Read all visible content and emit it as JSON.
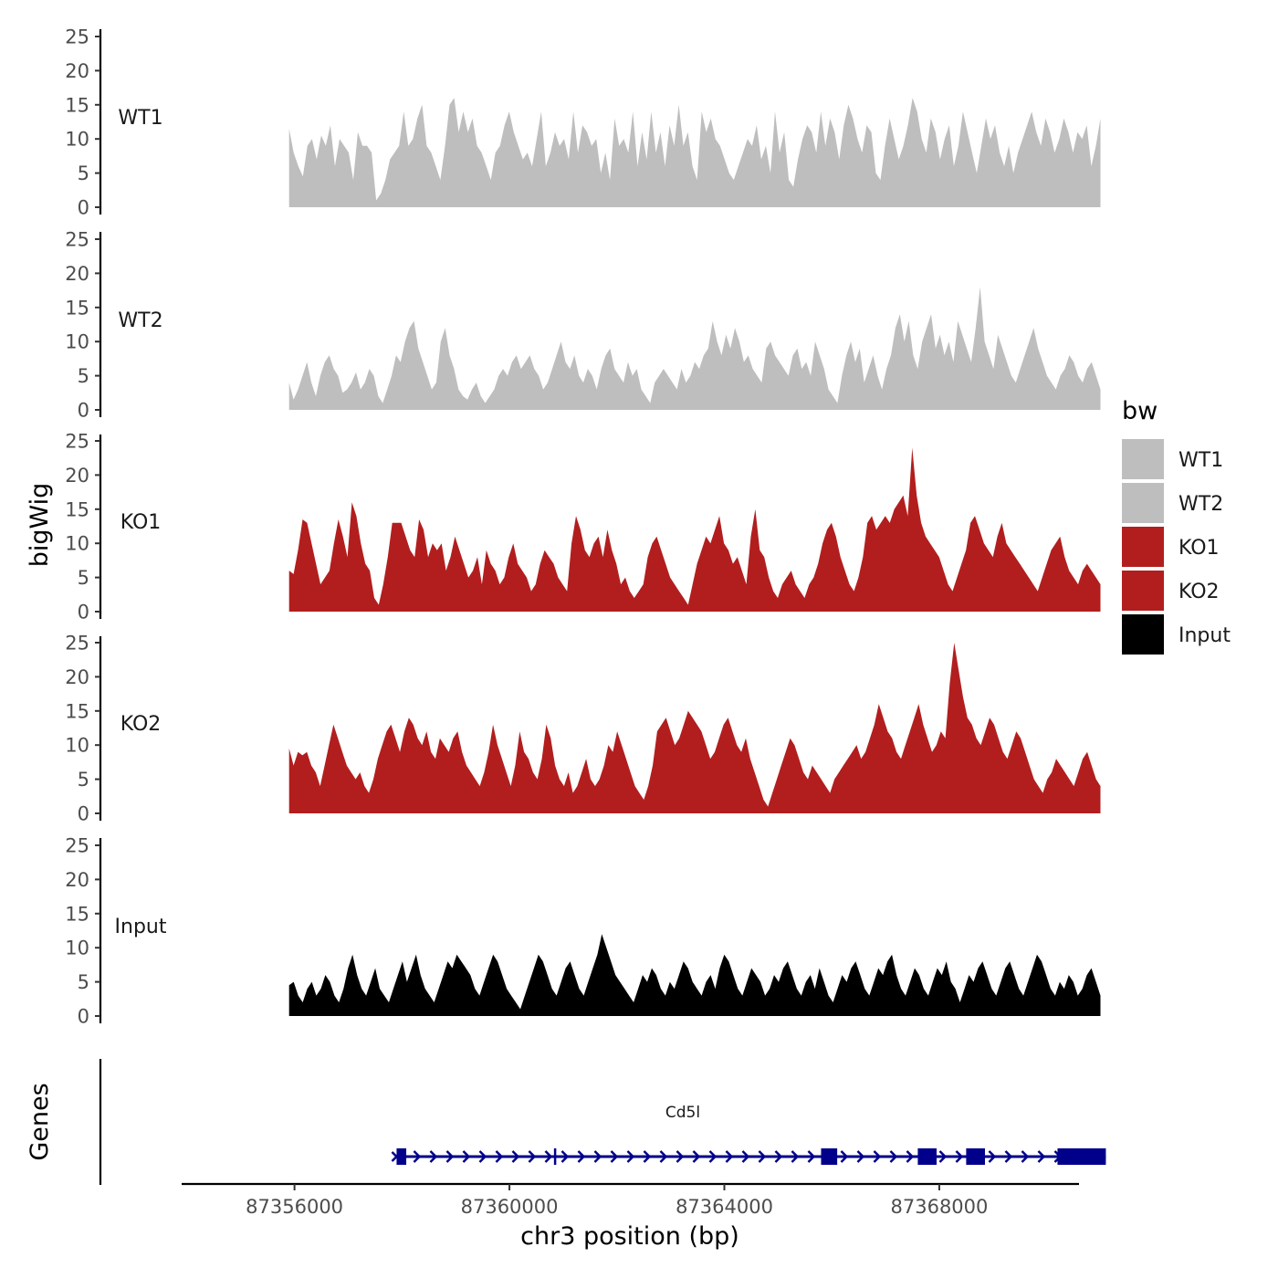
{
  "chart_data": {
    "type": "area",
    "xlabel": "chr3 position (bp)",
    "ylabel": "bigWig",
    "genes_label": "Genes",
    "xlim": [
      87353900,
      87370600
    ],
    "x_ticks": [
      87356000,
      87360000,
      87364000,
      87368000
    ],
    "x_tick_labels": [
      "87356000",
      "87360000",
      "87364000",
      "87368000"
    ],
    "data_range": [
      87355900,
      87371000
    ],
    "ylim": [
      0,
      25
    ],
    "y_ticks": [
      0,
      5,
      10,
      15,
      20,
      25
    ],
    "y_tick_labels": [
      "0",
      "5",
      "10",
      "15",
      "20",
      "25"
    ],
    "legend": {
      "title": "bw",
      "items": [
        {
          "label": "WT1",
          "color": "#bebebe"
        },
        {
          "label": "WT2",
          "color": "#bebebe"
        },
        {
          "label": "KO1",
          "color": "#b21e1e"
        },
        {
          "label": "KO2",
          "color": "#b21e1e"
        },
        {
          "label": "Input",
          "color": "#000000"
        }
      ]
    },
    "tracks": [
      {
        "name": "WT1",
        "color": "#bebebe",
        "values": [
          11.5,
          8,
          6,
          4.5,
          9,
          10,
          7,
          10.5,
          9,
          12,
          6,
          10,
          9,
          8,
          4,
          11,
          9,
          9,
          8,
          1,
          2,
          4,
          7,
          8,
          9,
          14,
          9,
          10,
          13,
          15,
          9,
          8,
          6,
          4,
          9,
          15,
          16,
          11,
          14,
          11,
          13,
          9,
          8,
          6,
          4,
          8,
          9,
          12,
          14,
          11,
          9,
          7,
          8,
          6,
          10,
          14,
          6,
          8,
          11,
          9,
          10,
          7,
          14,
          8,
          12,
          11,
          9,
          10,
          5,
          8,
          4,
          13,
          9,
          10,
          8,
          14,
          6,
          11,
          7,
          14,
          8,
          11,
          6,
          12,
          9,
          15,
          9,
          11,
          6,
          4,
          14,
          11,
          13,
          10,
          9,
          7,
          5,
          4,
          6,
          8,
          10,
          9,
          12,
          7,
          9,
          5,
          14,
          8,
          11,
          4,
          3,
          7,
          10,
          12,
          11,
          8,
          14,
          9,
          13,
          11,
          7,
          12,
          15,
          13,
          10,
          8,
          12,
          11,
          5,
          4,
          9,
          13,
          10,
          7,
          9,
          12,
          16,
          14,
          10,
          8,
          13,
          11,
          7,
          10,
          12,
          6,
          9,
          14,
          11,
          8,
          5,
          9,
          13,
          10,
          12,
          8,
          6,
          9,
          5,
          8,
          10,
          12,
          14,
          11,
          9,
          13,
          11,
          8,
          10,
          13,
          11,
          8,
          11,
          10,
          12,
          6,
          9,
          13
        ]
      },
      {
        "name": "WT2",
        "color": "#bebebe",
        "values": [
          4,
          1.5,
          3,
          5,
          7,
          4,
          2,
          5,
          7,
          8,
          6,
          5,
          2.5,
          3,
          4,
          5.5,
          3,
          4,
          6,
          5,
          2,
          1,
          3,
          5,
          8,
          7,
          10,
          12,
          13,
          9,
          7,
          5,
          3,
          4,
          10,
          12,
          8,
          6,
          3,
          2,
          1.5,
          3,
          4,
          2,
          1,
          2,
          3,
          5,
          6,
          5,
          7,
          8,
          6,
          7,
          8,
          6,
          5,
          3,
          4,
          6,
          8,
          10,
          7,
          6,
          8,
          5,
          4,
          6,
          5,
          3,
          6,
          8,
          9,
          6,
          5,
          4,
          7,
          5,
          6,
          3,
          2,
          1,
          4,
          5,
          6,
          5,
          4,
          3,
          6,
          4,
          5,
          7,
          6,
          8,
          9,
          13,
          10,
          8,
          11,
          9,
          12,
          10,
          7,
          8,
          6,
          5,
          4,
          9,
          10,
          8,
          7,
          6,
          5,
          8,
          9,
          6,
          7,
          5,
          10,
          8,
          6,
          3,
          2,
          1,
          5,
          8,
          10,
          7,
          9,
          4,
          6,
          8,
          5,
          3,
          6,
          8,
          12,
          14,
          10,
          13,
          8,
          6,
          10,
          12,
          14,
          9,
          11,
          8,
          10,
          7,
          13,
          11,
          9,
          7,
          12,
          18,
          10,
          8,
          6,
          11,
          9,
          7,
          5,
          4,
          6,
          8,
          10,
          12,
          9,
          7,
          5,
          4,
          3,
          5,
          6,
          8,
          7,
          5,
          4,
          6,
          7,
          5,
          3
        ]
      },
      {
        "name": "KO1",
        "color": "#b21e1e",
        "values": [
          6,
          5.5,
          9,
          13.5,
          13,
          10,
          7,
          4,
          5,
          6,
          10,
          13.5,
          11,
          8,
          16,
          14,
          10,
          7,
          6,
          2,
          1,
          4,
          8,
          13,
          13,
          13,
          11,
          9,
          8,
          13.5,
          12,
          8,
          10,
          9,
          10,
          6,
          8,
          11,
          9,
          7,
          5,
          6,
          8,
          4,
          9,
          7,
          6,
          4,
          5,
          8,
          10,
          7,
          6,
          5,
          3,
          4,
          7,
          9,
          8,
          7,
          5,
          4,
          3,
          10,
          14,
          12,
          9,
          8,
          10,
          11,
          8,
          12,
          9,
          7,
          4,
          5,
          3,
          2,
          3,
          4,
          8,
          10,
          11,
          9,
          7,
          5,
          4,
          3,
          2,
          1,
          4,
          7,
          9,
          11,
          10,
          12,
          14,
          10,
          9,
          7,
          8,
          6,
          4,
          11,
          15,
          9,
          8,
          5,
          3,
          2,
          4,
          5,
          6,
          4,
          3,
          2,
          4,
          5,
          7,
          10,
          12,
          13,
          11,
          8,
          6,
          4,
          3,
          5,
          8,
          13,
          14,
          12,
          13,
          14,
          13,
          15,
          16,
          17,
          14,
          24,
          17,
          13,
          11,
          10,
          9,
          8,
          6,
          4,
          3,
          5,
          7,
          9,
          13,
          14,
          12,
          10,
          9,
          8,
          11,
          13,
          10,
          9,
          8,
          7,
          6,
          5,
          4,
          3,
          5,
          7,
          9,
          10,
          11,
          8,
          6,
          5,
          4,
          6,
          7,
          6,
          5,
          4
        ]
      },
      {
        "name": "KO2",
        "color": "#b21e1e",
        "values": [
          9.5,
          7,
          9,
          8.5,
          9,
          7,
          6,
          4,
          7,
          10,
          13,
          11,
          9,
          7,
          6,
          5,
          6,
          4,
          3,
          5,
          8,
          10,
          12,
          13,
          11,
          9,
          12,
          14,
          13,
          11,
          10,
          12,
          9,
          8,
          11,
          10,
          9,
          11,
          12,
          9,
          7,
          6,
          5,
          4,
          6,
          9,
          13,
          10,
          8,
          6,
          4,
          7,
          12,
          9,
          8,
          6,
          5,
          8,
          13,
          11,
          7,
          5,
          4,
          6,
          3,
          4,
          6,
          8,
          5,
          4,
          5,
          7,
          10,
          9,
          12,
          10,
          8,
          6,
          4,
          3,
          2,
          4,
          7,
          12,
          13,
          14,
          12,
          10,
          11,
          13,
          15,
          14,
          13,
          12,
          10,
          8,
          9,
          11,
          13,
          14,
          12,
          10,
          9,
          11,
          8,
          6,
          4,
          2,
          1,
          3,
          5,
          7,
          9,
          11,
          10,
          8,
          6,
          5,
          7,
          6,
          5,
          4,
          3,
          5,
          6,
          7,
          8,
          9,
          10,
          8,
          9,
          11,
          13,
          16,
          14,
          12,
          11,
          9,
          8,
          10,
          12,
          14,
          16,
          13,
          11,
          9,
          10,
          12,
          11,
          19,
          25,
          21,
          17,
          14,
          13,
          11,
          10,
          12,
          14,
          13,
          11,
          9,
          8,
          10,
          12,
          11,
          9,
          7,
          5,
          4,
          3,
          5,
          6,
          8,
          7,
          6,
          5,
          4,
          6,
          8,
          9,
          7,
          5,
          4
        ]
      },
      {
        "name": "Input",
        "color": "#000000",
        "values": [
          4.5,
          5,
          3,
          2,
          4,
          5,
          3,
          4,
          6,
          5,
          3,
          2,
          4,
          7,
          9,
          6,
          4,
          3,
          5,
          7,
          4,
          3,
          2,
          4,
          6,
          8,
          5,
          7,
          9,
          6,
          4,
          3,
          2,
          4,
          6,
          8,
          7,
          9,
          8,
          7,
          6,
          4,
          3,
          5,
          7,
          9,
          8,
          6,
          4,
          3,
          2,
          1,
          3,
          5,
          7,
          9,
          8,
          6,
          4,
          3,
          5,
          7,
          8,
          6,
          4,
          3,
          5,
          7,
          9,
          12,
          10,
          8,
          6,
          5,
          4,
          3,
          2,
          4,
          6,
          5,
          7,
          6,
          4,
          3,
          5,
          4,
          6,
          8,
          7,
          5,
          4,
          3,
          5,
          6,
          4,
          7,
          9,
          8,
          6,
          4,
          3,
          5,
          7,
          6,
          5,
          3,
          4,
          6,
          5,
          7,
          8,
          6,
          4,
          3,
          5,
          6,
          4,
          7,
          5,
          3,
          2,
          4,
          6,
          5,
          7,
          8,
          6,
          4,
          3,
          5,
          7,
          6,
          8,
          9,
          6,
          4,
          3,
          5,
          7,
          6,
          4,
          3,
          5,
          7,
          6,
          8,
          5,
          4,
          2,
          4,
          6,
          5,
          7,
          8,
          6,
          4,
          3,
          5,
          7,
          8,
          6,
          4,
          3,
          5,
          7,
          9,
          8,
          6,
          4,
          3,
          5,
          4,
          6,
          5,
          3,
          4,
          6,
          7,
          5,
          3
        ]
      }
    ],
    "gene": {
      "name": "Cd5l",
      "color": "#00008b",
      "start": 87357900,
      "end": 87371100,
      "exons": [
        [
          87357900,
          87358080
        ],
        [
          87365800,
          87366100
        ],
        [
          87367600,
          87367950
        ],
        [
          87368500,
          87368850
        ],
        [
          87370200,
          87371100
        ]
      ],
      "small_marks": [
        87360850
      ]
    }
  }
}
